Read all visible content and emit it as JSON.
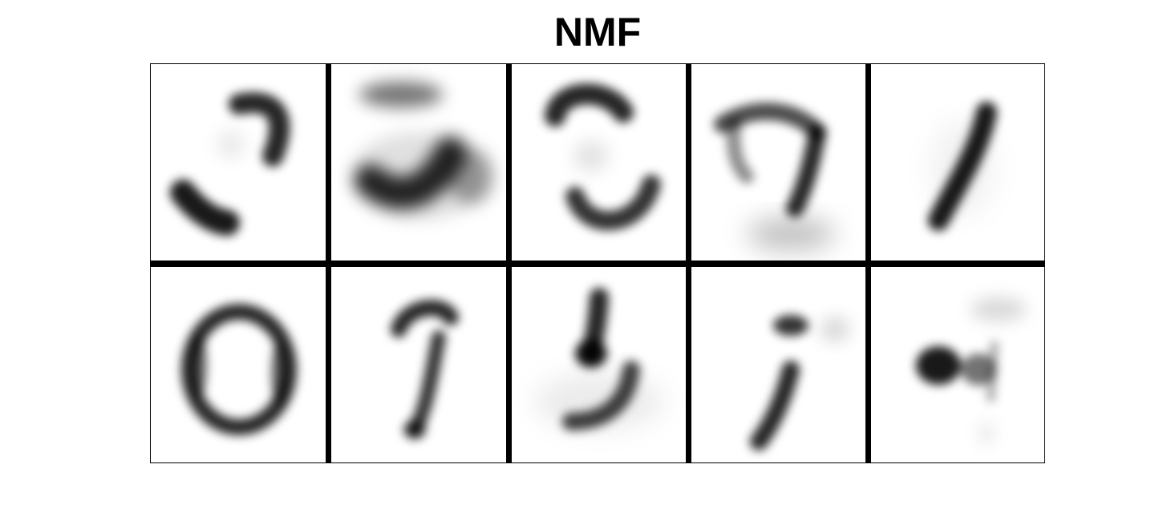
{
  "figure": {
    "title": "NMF",
    "rows": 2,
    "cols": 5,
    "tiles": [
      {
        "depicts": "two-arc-strokes"
      },
      {
        "depicts": "horizontal-blobs"
      },
      {
        "depicts": "top-and-bottom-arcs"
      },
      {
        "depicts": "seven-like-stroke"
      },
      {
        "depicts": "diagonal-stroke"
      },
      {
        "depicts": "zero-ring"
      },
      {
        "depicts": "hooked-stroke"
      },
      {
        "depicts": "five-like-stroke"
      },
      {
        "depicts": "short-diagonal-strokes"
      },
      {
        "depicts": "four-like-blob"
      }
    ],
    "colors": {
      "ink": "#000000",
      "background": "#ffffff",
      "separator": "#000000"
    }
  }
}
